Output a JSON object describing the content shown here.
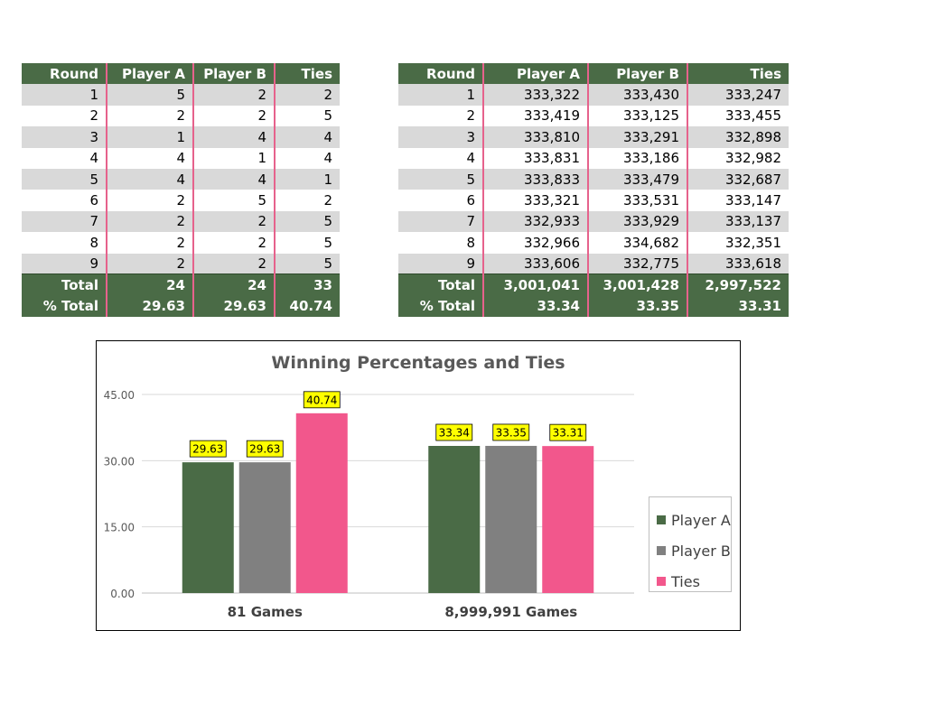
{
  "table_small": {
    "headers": [
      "Round",
      "Player A",
      "Player B",
      "Ties"
    ],
    "rows": [
      [
        "1",
        "5",
        "2",
        "2"
      ],
      [
        "2",
        "2",
        "2",
        "5"
      ],
      [
        "3",
        "1",
        "4",
        "4"
      ],
      [
        "4",
        "4",
        "1",
        "4"
      ],
      [
        "5",
        "4",
        "4",
        "1"
      ],
      [
        "6",
        "2",
        "5",
        "2"
      ],
      [
        "7",
        "2",
        "2",
        "5"
      ],
      [
        "8",
        "2",
        "2",
        "5"
      ],
      [
        "9",
        "2",
        "2",
        "5"
      ]
    ],
    "total": [
      "Total",
      "24",
      "24",
      "33"
    ],
    "pct_total": [
      "% Total",
      "29.63",
      "29.63",
      "40.74"
    ]
  },
  "table_large": {
    "headers": [
      "Round",
      "Player A",
      "Player B",
      "Ties"
    ],
    "rows": [
      [
        "1",
        "333,322",
        "333,430",
        "333,247"
      ],
      [
        "2",
        "333,419",
        "333,125",
        "333,455"
      ],
      [
        "3",
        "333,810",
        "333,291",
        "332,898"
      ],
      [
        "4",
        "333,831",
        "333,186",
        "332,982"
      ],
      [
        "5",
        "333,833",
        "333,479",
        "332,687"
      ],
      [
        "6",
        "333,321",
        "333,531",
        "333,147"
      ],
      [
        "7",
        "332,933",
        "333,929",
        "333,137"
      ],
      [
        "8",
        "332,966",
        "334,682",
        "332,351"
      ],
      [
        "9",
        "333,606",
        "332,775",
        "333,618"
      ]
    ],
    "total": [
      "Total",
      "3,001,041",
      "3,001,428",
      "2,997,522"
    ],
    "pct_total": [
      "% Total",
      "33.34",
      "33.35",
      "33.31"
    ]
  },
  "colors": {
    "header_green": "#4a6b46",
    "row_gray": "#d9d9d9",
    "separator_pink": "#e6628c",
    "player_a": "#4a6b46",
    "player_b": "#808080",
    "ties": "#f2578c",
    "label_bg": "#ffff00"
  },
  "chart_data": {
    "type": "bar",
    "title": "Winning Percentages and Ties",
    "categories": [
      "81 Games",
      "8,999,991 Games"
    ],
    "series": [
      {
        "name": "Player A",
        "values": [
          29.63,
          33.34
        ],
        "labels": [
          "29.63",
          "33.34"
        ]
      },
      {
        "name": "Player B",
        "values": [
          29.63,
          33.35
        ],
        "labels": [
          "29.63",
          "33.35"
        ]
      },
      {
        "name": "Ties",
        "values": [
          40.74,
          33.31
        ],
        "labels": [
          "40.74",
          "33.31"
        ]
      }
    ],
    "ylim": [
      0,
      45
    ],
    "yticks": [
      0,
      15,
      30,
      45
    ],
    "ytick_labels": [
      "0.00",
      "15.00",
      "30.00",
      "45.00"
    ],
    "grid": true,
    "legend": "right"
  }
}
